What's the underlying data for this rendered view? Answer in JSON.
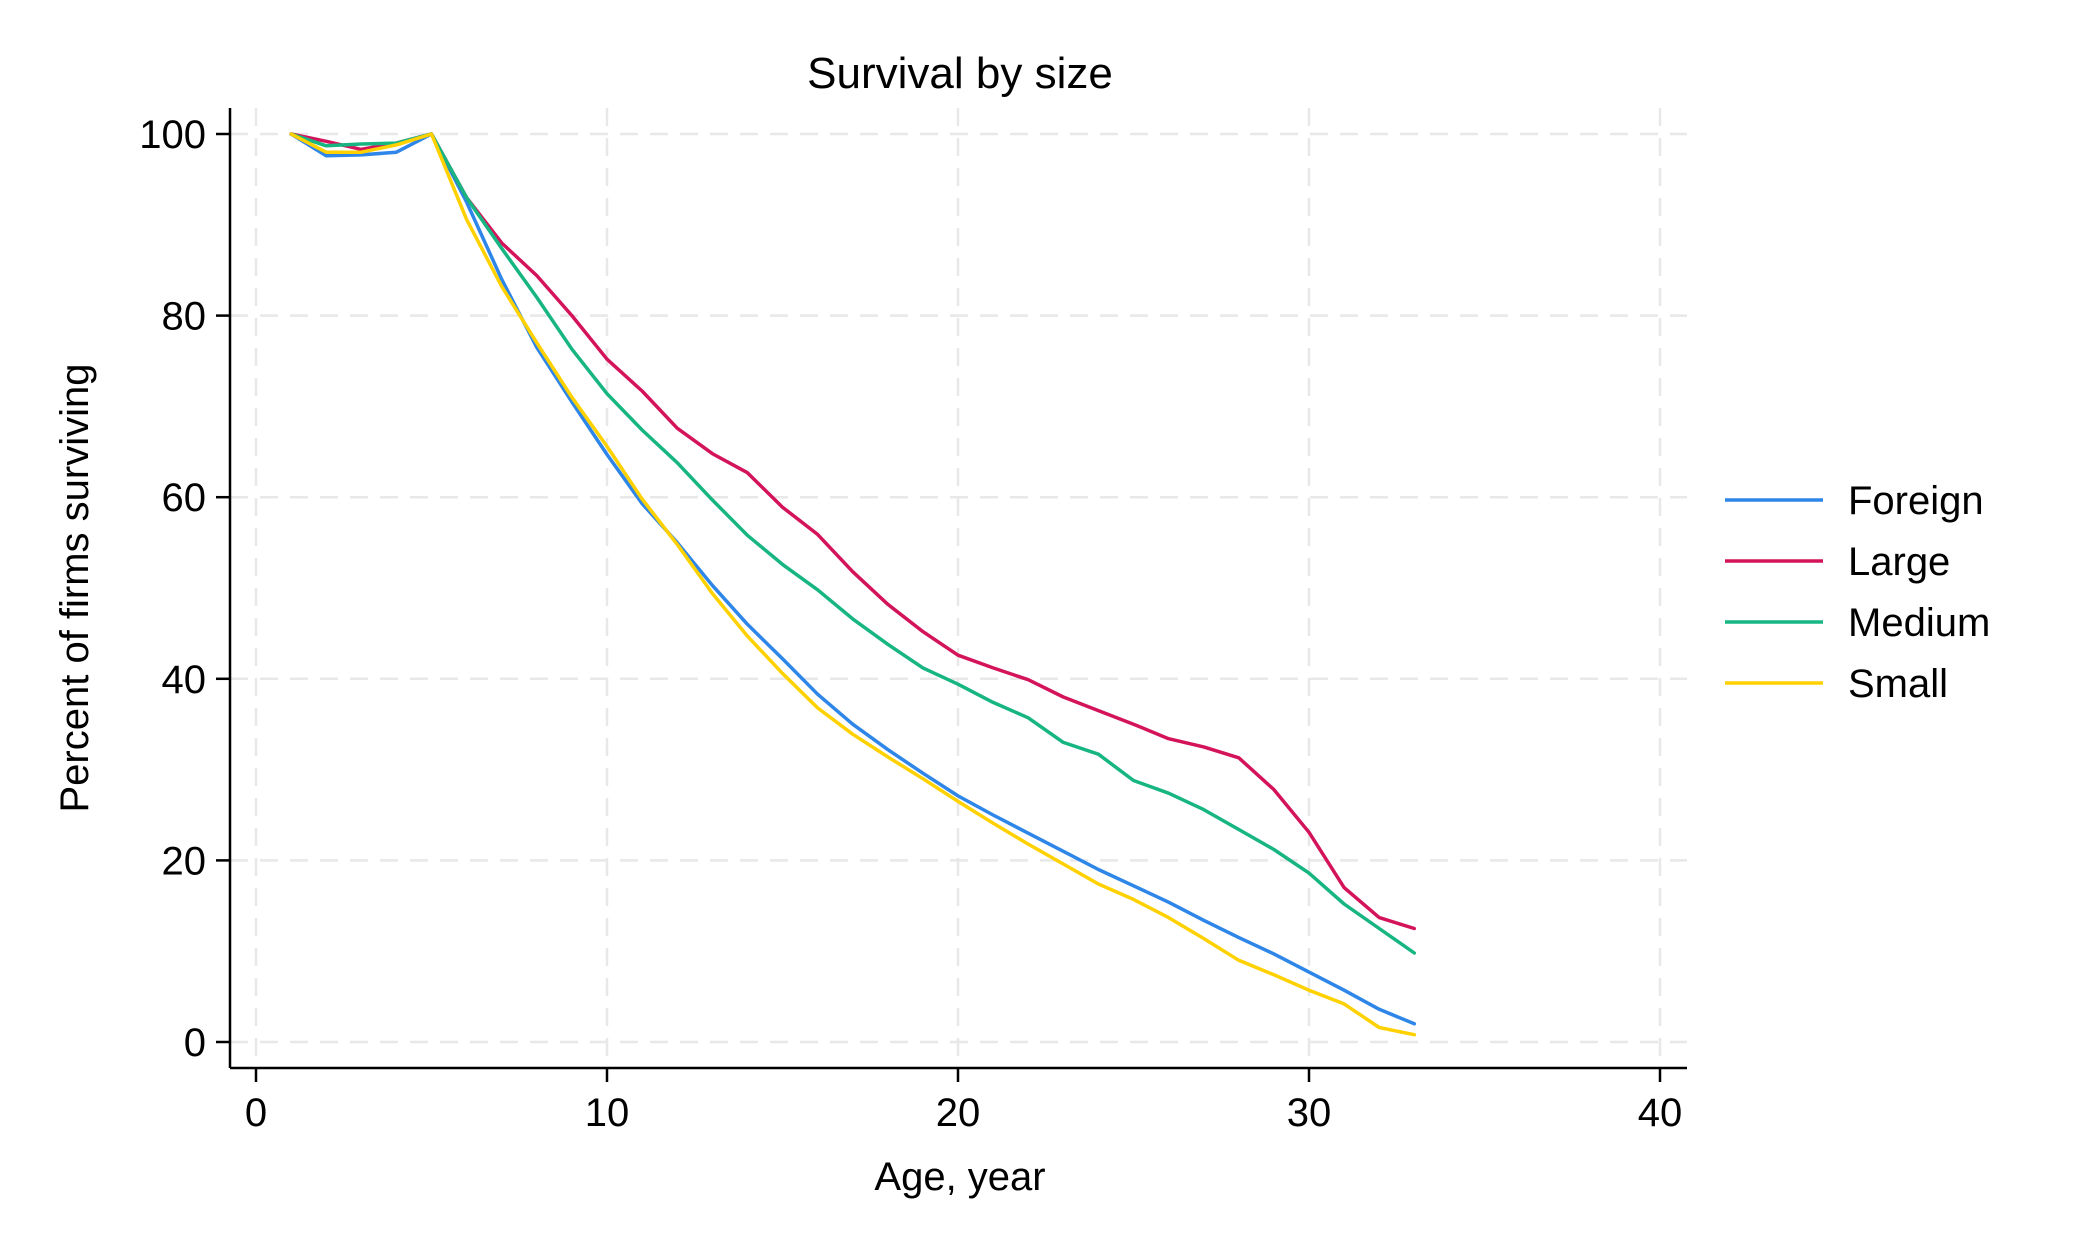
{
  "chart_data": {
    "type": "line",
    "title": "Survival by size",
    "xlabel": "Age, year",
    "ylabel": "Percent of firms surviving",
    "xlim": [
      0,
      40
    ],
    "ylim": [
      0,
      100
    ],
    "xticks": [
      0,
      10,
      20,
      30,
      40
    ],
    "yticks": [
      0,
      20,
      40,
      60,
      80,
      100
    ],
    "grid": true,
    "legend_position": "right",
    "x": [
      1,
      2,
      3,
      4,
      5,
      6,
      7,
      8,
      9,
      10,
      11,
      12,
      13,
      14,
      15,
      16,
      17,
      18,
      19,
      20,
      21,
      22,
      23,
      24,
      25,
      26,
      27,
      28,
      29,
      30,
      31,
      32,
      33
    ],
    "series": [
      {
        "name": "Foreign",
        "color": "#2e86e8",
        "values": [
          100,
          97.6,
          97.7,
          98,
          100,
          92.5,
          84,
          76.5,
          70.5,
          64.7,
          59.3,
          55,
          50.3,
          46,
          42.2,
          38.3,
          35,
          32.2,
          29.6,
          27.1,
          25,
          23,
          21,
          19,
          17.2,
          15.4,
          13.4,
          11.5,
          9.7,
          7.7,
          5.7,
          3.6,
          2
        ]
      },
      {
        "name": "Large",
        "color": "#d4145a",
        "values": [
          100,
          99.2,
          98.3,
          99,
          100,
          93,
          88,
          84.4,
          80,
          75.2,
          71.7,
          67.6,
          64.8,
          62.7,
          58.9,
          55.9,
          51.8,
          48.2,
          45.2,
          42.6,
          41.2,
          39.9,
          38,
          36.5,
          35,
          33.4,
          32.5,
          31.3,
          27.8,
          23.1,
          17,
          13.7,
          12.5
        ]
      },
      {
        "name": "Medium",
        "color": "#17b582",
        "values": [
          100,
          98.7,
          98.9,
          99,
          100,
          93,
          87.4,
          82,
          76.3,
          71.4,
          67.4,
          63.8,
          59.7,
          55.8,
          52.6,
          49.8,
          46.6,
          43.8,
          41.2,
          39.4,
          37.4,
          35.7,
          33,
          31.7,
          28.8,
          27.4,
          25.6,
          23.4,
          21.2,
          18.6,
          15.2,
          12.5,
          9.8
        ]
      },
      {
        "name": "Small",
        "color": "#ffd100",
        "values": [
          100,
          98,
          98,
          98.8,
          100,
          90.6,
          83.2,
          77,
          71,
          65.6,
          59.8,
          54.8,
          49.4,
          44.7,
          40.6,
          36.8,
          33.9,
          31.4,
          29,
          26.5,
          24.1,
          21.8,
          19.6,
          17.4,
          15.7,
          13.7,
          11.4,
          9,
          7.4,
          5.7,
          4.2,
          1.6,
          0.8
        ]
      }
    ]
  }
}
